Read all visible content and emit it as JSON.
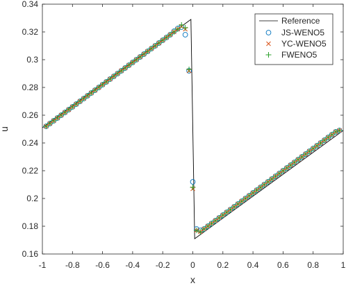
{
  "chart_data": {
    "type": "scatter",
    "title": "",
    "xlabel": "x",
    "ylabel": "u",
    "xlim": [
      -1,
      1
    ],
    "ylim": [
      0.16,
      0.34
    ],
    "xticks": [
      -1,
      -0.8,
      -0.6,
      -0.4,
      -0.2,
      0,
      0.2,
      0.4,
      0.6,
      0.8,
      1
    ],
    "xtick_labels": [
      "-1",
      "-0.8",
      "-0.6",
      "-0.4",
      "-0.2",
      "0",
      "0.2",
      "0.4",
      "0.6",
      "0.8",
      "1"
    ],
    "yticks": [
      0.16,
      0.18,
      0.2,
      0.22,
      0.24,
      0.26,
      0.28,
      0.3,
      0.32,
      0.34
    ],
    "ytick_labels": [
      "0.16",
      "0.18",
      "0.2",
      "0.22",
      "0.24",
      "0.26",
      "0.28",
      "0.3",
      "0.32",
      "0.34"
    ],
    "grid": false,
    "legend_position": "top-right",
    "reference": {
      "name": "Reference",
      "color": "#000000",
      "x": [
        -1,
        -0.0125,
        -0.0125,
        0.0125,
        0.0125,
        1
      ],
      "y": [
        0.251,
        0.329,
        0.329,
        0.171,
        0.171,
        0.249
      ]
    },
    "series": [
      {
        "name": "JS-WENO5",
        "marker": "circle",
        "color": "#0072bd",
        "x": [
          -0.975,
          -0.95,
          -0.925,
          -0.9,
          -0.875,
          -0.85,
          -0.825,
          -0.8,
          -0.775,
          -0.75,
          -0.725,
          -0.7,
          -0.675,
          -0.65,
          -0.625,
          -0.6,
          -0.575,
          -0.55,
          -0.525,
          -0.5,
          -0.475,
          -0.45,
          -0.425,
          -0.4,
          -0.375,
          -0.35,
          -0.325,
          -0.3,
          -0.275,
          -0.25,
          -0.225,
          -0.2,
          -0.175,
          -0.15,
          -0.125,
          -0.1,
          -0.075,
          -0.05,
          -0.025,
          0,
          0.025,
          0.05,
          0.075,
          0.1,
          0.125,
          0.15,
          0.175,
          0.2,
          0.225,
          0.25,
          0.275,
          0.3,
          0.325,
          0.35,
          0.375,
          0.4,
          0.425,
          0.45,
          0.475,
          0.5,
          0.525,
          0.55,
          0.575,
          0.6,
          0.625,
          0.65,
          0.675,
          0.7,
          0.725,
          0.75,
          0.775,
          0.8,
          0.825,
          0.85,
          0.875,
          0.9,
          0.925,
          0.95,
          0.975
        ],
        "y": [
          0.252,
          0.254,
          0.256,
          0.258,
          0.26,
          0.262,
          0.264,
          0.266,
          0.268,
          0.27,
          0.272,
          0.274,
          0.276,
          0.278,
          0.28,
          0.282,
          0.284,
          0.286,
          0.288,
          0.29,
          0.292,
          0.294,
          0.296,
          0.298,
          0.3,
          0.302,
          0.304,
          0.306,
          0.308,
          0.31,
          0.312,
          0.314,
          0.316,
          0.318,
          0.3205,
          0.3225,
          0.3235,
          0.318,
          0.292,
          0.212,
          0.178,
          0.177,
          0.178,
          0.18,
          0.182,
          0.184,
          0.186,
          0.188,
          0.19,
          0.192,
          0.194,
          0.196,
          0.198,
          0.2,
          0.202,
          0.204,
          0.206,
          0.208,
          0.21,
          0.212,
          0.214,
          0.216,
          0.218,
          0.22,
          0.222,
          0.224,
          0.226,
          0.228,
          0.23,
          0.232,
          0.234,
          0.236,
          0.238,
          0.24,
          0.242,
          0.244,
          0.246,
          0.248,
          0.249
        ]
      },
      {
        "name": "YC-WENO5",
        "marker": "x",
        "color": "#d95319",
        "x": [
          -0.975,
          -0.95,
          -0.925,
          -0.9,
          -0.875,
          -0.85,
          -0.825,
          -0.8,
          -0.775,
          -0.75,
          -0.725,
          -0.7,
          -0.675,
          -0.65,
          -0.625,
          -0.6,
          -0.575,
          -0.55,
          -0.525,
          -0.5,
          -0.475,
          -0.45,
          -0.425,
          -0.4,
          -0.375,
          -0.35,
          -0.325,
          -0.3,
          -0.275,
          -0.25,
          -0.225,
          -0.2,
          -0.175,
          -0.15,
          -0.125,
          -0.1,
          -0.075,
          -0.05,
          -0.025,
          0,
          0.025,
          0.05,
          0.075,
          0.1,
          0.125,
          0.15,
          0.175,
          0.2,
          0.225,
          0.25,
          0.275,
          0.3,
          0.325,
          0.35,
          0.375,
          0.4,
          0.425,
          0.45,
          0.475,
          0.5,
          0.525,
          0.55,
          0.575,
          0.6,
          0.625,
          0.65,
          0.675,
          0.7,
          0.725,
          0.75,
          0.775,
          0.8,
          0.825,
          0.85,
          0.875,
          0.9,
          0.925,
          0.95,
          0.975
        ],
        "y": [
          0.252,
          0.254,
          0.256,
          0.258,
          0.26,
          0.262,
          0.264,
          0.266,
          0.268,
          0.27,
          0.272,
          0.274,
          0.276,
          0.278,
          0.28,
          0.282,
          0.284,
          0.286,
          0.288,
          0.29,
          0.292,
          0.294,
          0.296,
          0.298,
          0.3,
          0.302,
          0.304,
          0.306,
          0.308,
          0.31,
          0.312,
          0.314,
          0.316,
          0.318,
          0.32,
          0.322,
          0.324,
          0.322,
          0.292,
          0.207,
          0.177,
          0.176,
          0.178,
          0.18,
          0.182,
          0.184,
          0.186,
          0.188,
          0.19,
          0.192,
          0.194,
          0.196,
          0.198,
          0.2,
          0.202,
          0.204,
          0.206,
          0.208,
          0.21,
          0.212,
          0.214,
          0.216,
          0.218,
          0.22,
          0.222,
          0.224,
          0.226,
          0.228,
          0.23,
          0.232,
          0.234,
          0.236,
          0.238,
          0.24,
          0.242,
          0.244,
          0.246,
          0.248,
          0.249
        ]
      },
      {
        "name": "FWENO5",
        "marker": "plus",
        "color": "#2ca02c",
        "x": [
          -0.975,
          -0.95,
          -0.925,
          -0.9,
          -0.875,
          -0.85,
          -0.825,
          -0.8,
          -0.775,
          -0.75,
          -0.725,
          -0.7,
          -0.675,
          -0.65,
          -0.625,
          -0.6,
          -0.575,
          -0.55,
          -0.525,
          -0.5,
          -0.475,
          -0.45,
          -0.425,
          -0.4,
          -0.375,
          -0.35,
          -0.325,
          -0.3,
          -0.275,
          -0.25,
          -0.225,
          -0.2,
          -0.175,
          -0.15,
          -0.125,
          -0.1,
          -0.075,
          -0.05,
          -0.025,
          0,
          0.025,
          0.05,
          0.075,
          0.1,
          0.125,
          0.15,
          0.175,
          0.2,
          0.225,
          0.25,
          0.275,
          0.3,
          0.325,
          0.35,
          0.375,
          0.4,
          0.425,
          0.45,
          0.475,
          0.5,
          0.525,
          0.55,
          0.575,
          0.6,
          0.625,
          0.65,
          0.675,
          0.7,
          0.725,
          0.75,
          0.775,
          0.8,
          0.825,
          0.85,
          0.875,
          0.9,
          0.925,
          0.95,
          0.975
        ],
        "y": [
          0.252,
          0.254,
          0.256,
          0.258,
          0.26,
          0.262,
          0.264,
          0.266,
          0.268,
          0.27,
          0.272,
          0.274,
          0.276,
          0.278,
          0.28,
          0.282,
          0.284,
          0.286,
          0.288,
          0.29,
          0.292,
          0.294,
          0.296,
          0.298,
          0.3,
          0.302,
          0.304,
          0.306,
          0.308,
          0.31,
          0.312,
          0.314,
          0.316,
          0.318,
          0.32,
          0.322,
          0.325,
          0.323,
          0.293,
          0.208,
          0.177,
          0.176,
          0.178,
          0.18,
          0.182,
          0.184,
          0.186,
          0.188,
          0.19,
          0.192,
          0.194,
          0.196,
          0.198,
          0.2,
          0.202,
          0.204,
          0.206,
          0.208,
          0.21,
          0.212,
          0.214,
          0.216,
          0.218,
          0.22,
          0.222,
          0.224,
          0.226,
          0.228,
          0.23,
          0.232,
          0.234,
          0.236,
          0.238,
          0.24,
          0.242,
          0.244,
          0.246,
          0.248,
          0.249
        ]
      }
    ]
  }
}
